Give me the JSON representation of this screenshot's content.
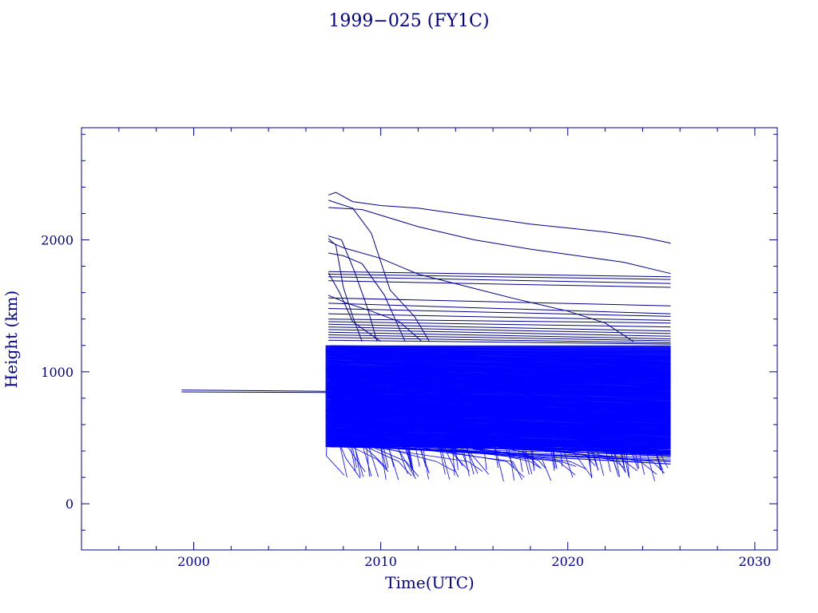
{
  "chart_data": {
    "type": "line",
    "title": "1999−025 (FY1C)",
    "xlabel": "Time(UTC)",
    "ylabel": "Height (km)",
    "xlim": [
      1994.0,
      2031.2
    ],
    "ylim": [
      -350,
      2850
    ],
    "x_ticks": [
      2000,
      2010,
      2020,
      2030
    ],
    "y_ticks": [
      0,
      1000,
      2000
    ],
    "grid": false,
    "colors": {
      "axis": "#00008b",
      "dense": "#0000ff",
      "upper": "#00008b"
    },
    "parent_object": [
      {
        "x": [
          1999.35,
          2007.05
        ],
        "y": [
          862,
          852
        ]
      },
      {
        "x": [
          1999.35,
          2007.05
        ],
        "y": [
          848,
          843
        ]
      }
    ],
    "debris_region": {
      "x": [
        2007.05,
        2025.5
      ],
      "y": [
        230,
        1200
      ]
    },
    "upper_debris": [
      {
        "x": [
          2007.2,
          2007.6,
          2008.5,
          2010,
          2012,
          2014,
          2016,
          2018,
          2020,
          2022,
          2024,
          2025.5
        ],
        "y": [
          2340,
          2360,
          2290,
          2260,
          2240,
          2200,
          2160,
          2120,
          2090,
          2060,
          2020,
          1975
        ]
      },
      {
        "x": [
          2007.2,
          2009,
          2012,
          2015,
          2018,
          2021,
          2023,
          2025.5
        ],
        "y": [
          2245,
          2230,
          2100,
          2000,
          1930,
          1870,
          1830,
          1745
        ]
      },
      {
        "x": [
          2007.2,
          2008,
          2010,
          2012,
          2014.5,
          2017,
          2020,
          2022,
          2023.5
        ],
        "y": [
          1990,
          1940,
          1860,
          1740,
          1650,
          1560,
          1460,
          1370,
          1230
        ]
      },
      {
        "x": [
          2007.2,
          2008.5,
          2009.5,
          2010.5,
          2011.8,
          2012.6
        ],
        "y": [
          2300,
          2240,
          2050,
          1620,
          1420,
          1230
        ]
      },
      {
        "x": [
          2007.2,
          2007.9,
          2008.6,
          2009.3,
          2009.8
        ],
        "y": [
          2030,
          2000,
          1760,
          1480,
          1230
        ]
      },
      {
        "x": [
          2007.2,
          2007.6,
          2008.0,
          2008.5,
          2009.0
        ],
        "y": [
          2010,
          1960,
          1640,
          1420,
          1230
        ]
      },
      {
        "x": [
          2007.2,
          2008,
          2009,
          2010.2,
          2011.3
        ],
        "y": [
          1900,
          1880,
          1820,
          1580,
          1230
        ]
      },
      {
        "x": [
          2007.2,
          2008.2,
          2009.5,
          2011,
          2012.2
        ],
        "y": [
          1580,
          1520,
          1460,
          1380,
          1230
        ]
      },
      {
        "x": [
          2007.2,
          2007.8,
          2008.5,
          2010
        ],
        "y": [
          1750,
          1600,
          1380,
          1230
        ]
      },
      {
        "x": [
          2007.2,
          2025.5
        ],
        "y": [
          1760,
          1720
        ]
      },
      {
        "x": [
          2007.2,
          2025.5
        ],
        "y": [
          1740,
          1700
        ]
      },
      {
        "x": [
          2007.2,
          2025.5
        ],
        "y": [
          1720,
          1670
        ]
      },
      {
        "x": [
          2007.2,
          2025.5
        ],
        "y": [
          1690,
          1640
        ]
      },
      {
        "x": [
          2007.2,
          2025.5
        ],
        "y": [
          1560,
          1500
        ]
      },
      {
        "x": [
          2007.2,
          2025.5
        ],
        "y": [
          1520,
          1440
        ]
      },
      {
        "x": [
          2007.2,
          2025.5
        ],
        "y": [
          1480,
          1420
        ]
      },
      {
        "x": [
          2007.2,
          2025.5
        ],
        "y": [
          1440,
          1390
        ]
      },
      {
        "x": [
          2007.2,
          2025.5
        ],
        "y": [
          1400,
          1370
        ]
      },
      {
        "x": [
          2007.2,
          2025.5
        ],
        "y": [
          1380,
          1340
        ]
      },
      {
        "x": [
          2007.2,
          2025.5
        ],
        "y": [
          1360,
          1310
        ]
      },
      {
        "x": [
          2007.2,
          2025.5
        ],
        "y": [
          1340,
          1290
        ]
      },
      {
        "x": [
          2007.2,
          2025.5
        ],
        "y": [
          1320,
          1270
        ]
      },
      {
        "x": [
          2007.2,
          2025.5
        ],
        "y": [
          1300,
          1250
        ]
      },
      {
        "x": [
          2007.2,
          2025.5
        ],
        "y": [
          1280,
          1235
        ]
      },
      {
        "x": [
          2007.2,
          2025.5
        ],
        "y": [
          1260,
          1220
        ]
      },
      {
        "x": [
          2007.2,
          2025.5
        ],
        "y": [
          1240,
          1210
        ]
      }
    ]
  }
}
